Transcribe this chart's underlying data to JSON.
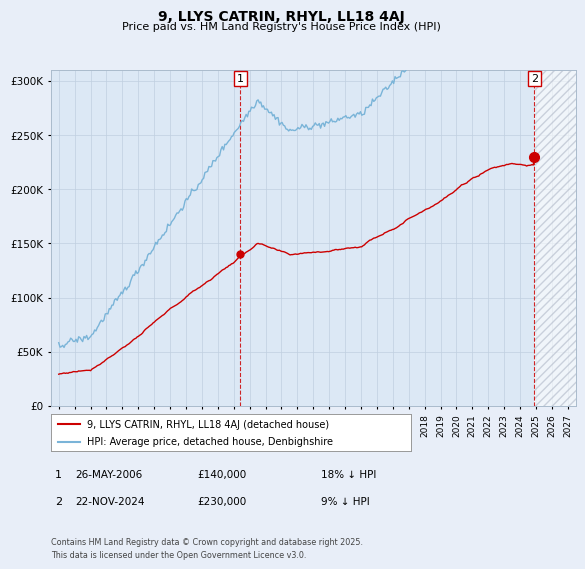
{
  "title": "9, LLYS CATRIN, RHYL, LL18 4AJ",
  "subtitle": "Price paid vs. HM Land Registry's House Price Index (HPI)",
  "legend_line1": "9, LLYS CATRIN, RHYL, LL18 4AJ (detached house)",
  "legend_line2": "HPI: Average price, detached house, Denbighshire",
  "annotation1_date": "26-MAY-2006",
  "annotation1_price": "£140,000",
  "annotation1_hpi": "18% ↓ HPI",
  "annotation2_date": "22-NOV-2024",
  "annotation2_price": "£230,000",
  "annotation2_hpi": "9% ↓ HPI",
  "footer": "Contains HM Land Registry data © Crown copyright and database right 2025.\nThis data is licensed under the Open Government Licence v3.0.",
  "sale1_year": 2006.42,
  "sale1_value": 140000,
  "sale2_year": 2024.9,
  "sale2_value": 230000,
  "hpi_color": "#7ab4d8",
  "price_color": "#cc0000",
  "background_color": "#e8eef8",
  "plot_bg_color": "#dce8f5",
  "grid_color": "#c0cfe0",
  "ylim_min": 0,
  "ylim_max": 310000,
  "xlim_min": 1994.5,
  "xlim_max": 2027.5
}
